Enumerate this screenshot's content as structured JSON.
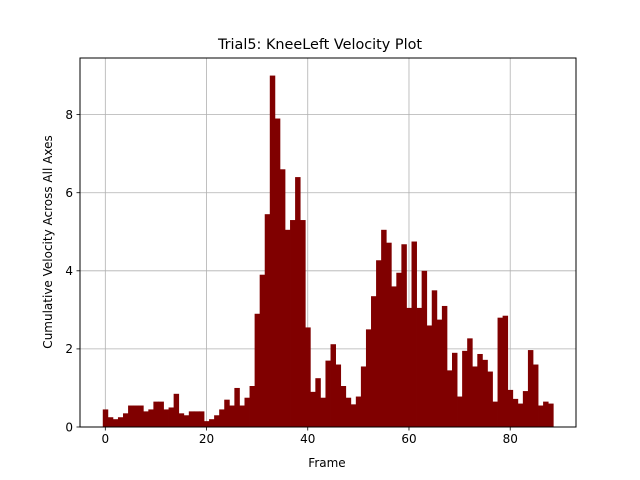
{
  "chart_data": {
    "type": "bar",
    "title": "Trial5: KneeLeft Velocity Plot",
    "xlabel": "Frame",
    "ylabel": "Cumulative Velocity Across All Axes",
    "xlim": [
      -5,
      93
    ],
    "ylim": [
      0,
      9.45
    ],
    "xticks": [
      0,
      20,
      40,
      60,
      80
    ],
    "yticks": [
      0,
      2,
      4,
      6,
      8
    ],
    "grid": true,
    "bar_color": "#800000",
    "x": [
      0,
      1,
      2,
      3,
      4,
      5,
      6,
      7,
      8,
      9,
      10,
      11,
      12,
      13,
      14,
      15,
      16,
      17,
      18,
      19,
      20,
      21,
      22,
      23,
      24,
      25,
      26,
      27,
      28,
      29,
      30,
      31,
      32,
      33,
      34,
      35,
      36,
      37,
      38,
      39,
      40,
      41,
      42,
      43,
      44,
      45,
      46,
      47,
      48,
      49,
      50,
      51,
      52,
      53,
      54,
      55,
      56,
      57,
      58,
      59,
      60,
      61,
      62,
      63,
      64,
      65,
      66,
      67,
      68,
      69,
      70,
      71,
      72,
      73,
      74,
      75,
      76,
      77,
      78,
      79,
      80,
      81,
      82,
      83,
      84,
      85,
      86,
      87,
      88
    ],
    "values": [
      0.45,
      0.25,
      0.2,
      0.25,
      0.35,
      0.55,
      0.55,
      0.55,
      0.4,
      0.45,
      0.65,
      0.65,
      0.45,
      0.5,
      0.85,
      0.35,
      0.3,
      0.4,
      0.4,
      0.4,
      0.15,
      0.2,
      0.3,
      0.45,
      0.7,
      0.55,
      1.0,
      0.55,
      0.75,
      1.05,
      2.9,
      3.9,
      5.45,
      9.0,
      7.9,
      6.6,
      5.05,
      5.3,
      6.4,
      5.3,
      2.55,
      0.9,
      1.25,
      0.75,
      1.7,
      2.12,
      1.6,
      1.05,
      0.75,
      0.58,
      0.78,
      1.55,
      2.5,
      3.35,
      4.27,
      5.05,
      4.72,
      3.6,
      3.95,
      4.68,
      3.05,
      4.75,
      3.05,
      4.0,
      2.6,
      3.5,
      2.75,
      3.1,
      1.45,
      1.9,
      0.78,
      1.95,
      2.27,
      1.55,
      1.87,
      1.72,
      1.42,
      0.65,
      2.8,
      2.85,
      0.95,
      0.72,
      0.6,
      0.92,
      1.97,
      1.6,
      0.55,
      0.65,
      0.6
    ]
  }
}
